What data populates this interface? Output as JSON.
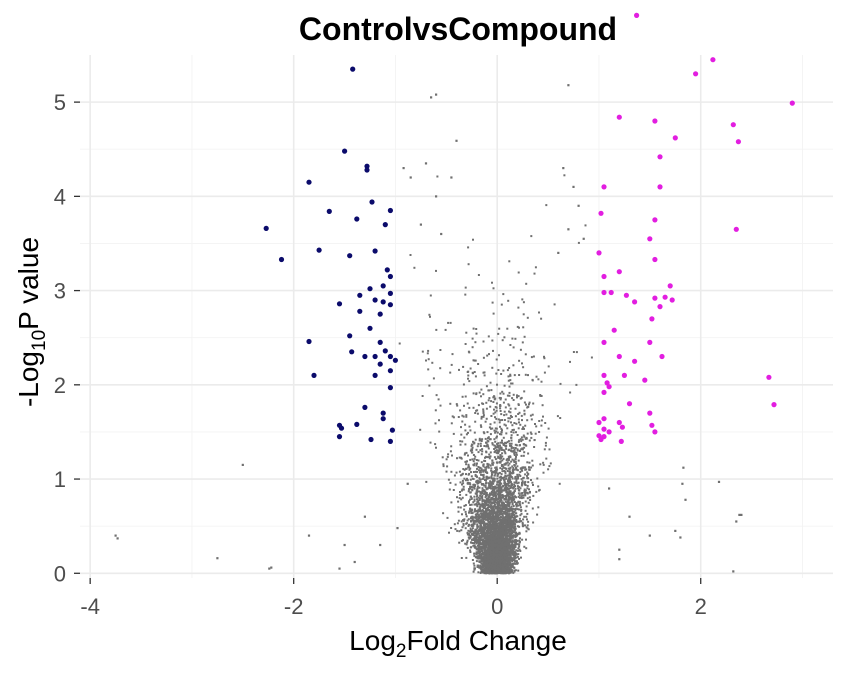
{
  "chart_data": {
    "type": "scatter",
    "title": "ControlvsCompound",
    "xlabel": {
      "pre": "Log",
      "sub": "2",
      "post": "Fold Change"
    },
    "ylabel": {
      "pre": "-Log",
      "sub": "10",
      "post": "P value"
    },
    "xlim": [
      -4.1,
      3.3
    ],
    "ylim": [
      -0.05,
      5.5
    ],
    "x_ticks": [
      -4,
      -2,
      0,
      2
    ],
    "y_ticks": [
      0,
      1,
      2,
      3,
      4,
      5
    ],
    "x_tick_labels": [
      "-4",
      "-2",
      "0",
      "2"
    ],
    "y_tick_labels": [
      "0",
      "1",
      "2",
      "3",
      "4",
      "5"
    ],
    "grid": true,
    "legend": "none",
    "thresholds": {
      "log2fc": 1,
      "pvalue_log10": 1.3
    },
    "colors": {
      "down": "#0b0b6b",
      "up": "#e21ee0",
      "ns": "#707070"
    },
    "series": [
      {
        "key": "down",
        "points": [
          [
            -1.42,
            5.35
          ],
          [
            -1.5,
            4.48
          ],
          [
            -1.85,
            4.15
          ],
          [
            -1.28,
            4.32
          ],
          [
            -1.28,
            4.28
          ],
          [
            -1.23,
            3.94
          ],
          [
            -1.65,
            3.84
          ],
          [
            -1.05,
            3.85
          ],
          [
            -1.38,
            3.76
          ],
          [
            -2.27,
            3.66
          ],
          [
            -1.1,
            3.7
          ],
          [
            -2.12,
            3.33
          ],
          [
            -1.75,
            3.43
          ],
          [
            -1.45,
            3.37
          ],
          [
            -1.2,
            3.42
          ],
          [
            -1.08,
            3.22
          ],
          [
            -1.05,
            3.15
          ],
          [
            -1.12,
            3.05
          ],
          [
            -1.25,
            3.02
          ],
          [
            -1.35,
            2.95
          ],
          [
            -1.2,
            2.9
          ],
          [
            -1.05,
            2.97
          ],
          [
            -1.12,
            2.88
          ],
          [
            -1.55,
            2.86
          ],
          [
            -1.05,
            2.85
          ],
          [
            -1.35,
            2.78
          ],
          [
            -1.15,
            2.75
          ],
          [
            -1.25,
            2.6
          ],
          [
            -1.45,
            2.52
          ],
          [
            -1.15,
            2.45
          ],
          [
            -1.85,
            2.46
          ],
          [
            -1.1,
            2.36
          ],
          [
            -1.43,
            2.35
          ],
          [
            -1.3,
            2.3
          ],
          [
            -1.2,
            2.3
          ],
          [
            -1.05,
            2.3
          ],
          [
            -1.0,
            2.26
          ],
          [
            -1.15,
            2.22
          ],
          [
            -1.05,
            2.15
          ],
          [
            -1.8,
            2.1
          ],
          [
            -1.2,
            2.1
          ],
          [
            -1.05,
            1.97
          ],
          [
            -1.3,
            1.76
          ],
          [
            -1.12,
            1.7
          ],
          [
            -1.12,
            1.64
          ],
          [
            -1.55,
            1.57
          ],
          [
            -1.53,
            1.54
          ],
          [
            -1.38,
            1.58
          ],
          [
            -1.03,
            1.52
          ],
          [
            -1.55,
            1.45
          ],
          [
            -1.24,
            1.42
          ],
          [
            -1.05,
            1.4
          ]
        ]
      },
      {
        "key": "up",
        "points": [
          [
            1.37,
            5.92
          ],
          [
            2.12,
            5.45
          ],
          [
            1.95,
            5.3
          ],
          [
            2.9,
            4.99
          ],
          [
            1.2,
            4.84
          ],
          [
            1.55,
            4.8
          ],
          [
            2.32,
            4.76
          ],
          [
            1.75,
            4.62
          ],
          [
            2.37,
            4.58
          ],
          [
            1.6,
            4.42
          ],
          [
            1.05,
            4.1
          ],
          [
            1.6,
            4.1
          ],
          [
            1.02,
            3.82
          ],
          [
            1.55,
            3.75
          ],
          [
            1.5,
            3.55
          ],
          [
            2.35,
            3.65
          ],
          [
            1.0,
            3.4
          ],
          [
            1.55,
            3.33
          ],
          [
            1.05,
            3.15
          ],
          [
            1.2,
            3.2
          ],
          [
            1.7,
            3.05
          ],
          [
            1.65,
            2.93
          ],
          [
            1.12,
            2.98
          ],
          [
            1.27,
            2.95
          ],
          [
            1.35,
            2.88
          ],
          [
            1.05,
            2.98
          ],
          [
            1.55,
            2.92
          ],
          [
            1.72,
            2.9
          ],
          [
            1.6,
            2.83
          ],
          [
            1.52,
            2.7
          ],
          [
            1.15,
            2.58
          ],
          [
            1.5,
            2.45
          ],
          [
            1.05,
            2.45
          ],
          [
            1.2,
            2.3
          ],
          [
            1.62,
            2.3
          ],
          [
            1.35,
            2.25
          ],
          [
            1.05,
            2.1
          ],
          [
            1.25,
            2.1
          ],
          [
            1.45,
            2.05
          ],
          [
            2.67,
            2.08
          ],
          [
            1.08,
            2.02
          ],
          [
            1.1,
            1.98
          ],
          [
            1.05,
            1.92
          ],
          [
            2.72,
            1.79
          ],
          [
            1.3,
            1.8
          ],
          [
            1.5,
            1.7
          ],
          [
            1.05,
            1.64
          ],
          [
            1.2,
            1.6
          ],
          [
            1.0,
            1.6
          ],
          [
            1.23,
            1.55
          ],
          [
            1.52,
            1.57
          ],
          [
            1.05,
            1.53
          ],
          [
            1.1,
            1.5
          ],
          [
            1.55,
            1.5
          ],
          [
            1.0,
            1.46
          ],
          [
            1.05,
            1.45
          ],
          [
            1.02,
            1.42
          ],
          [
            1.22,
            1.4
          ]
        ]
      },
      {
        "key": "ns",
        "points": [
          [
            -0.65,
            5.05
          ],
          [
            -0.6,
            5.08
          ],
          [
            0.7,
            5.18
          ],
          [
            -0.4,
            4.59
          ],
          [
            -0.7,
            4.35
          ],
          [
            -0.92,
            4.3
          ],
          [
            -0.85,
            4.2
          ],
          [
            -0.45,
            4.2
          ],
          [
            0.65,
            4.3
          ],
          [
            0.75,
            4.1
          ],
          [
            -0.6,
            4.0
          ],
          [
            0.8,
            3.9
          ],
          [
            -0.75,
            3.7
          ],
          [
            -0.55,
            3.6
          ],
          [
            0.7,
            3.65
          ],
          [
            0.85,
            3.55
          ],
          [
            0.6,
            3.4
          ],
          [
            -2.5,
            1.15
          ],
          [
            -3.75,
            0.4
          ],
          [
            -3.73,
            0.37
          ],
          [
            -2.75,
            0.16
          ],
          [
            -2.22,
            0.06
          ],
          [
            -2.24,
            0.05
          ],
          [
            -1.85,
            0.4
          ],
          [
            -1.55,
            0.05
          ],
          [
            -1.4,
            0.12
          ],
          [
            -1.15,
            0.3
          ],
          [
            1.2,
            0.25
          ],
          [
            1.2,
            0.15
          ],
          [
            1.5,
            0.4
          ],
          [
            1.75,
            0.45
          ],
          [
            1.8,
            0.38
          ],
          [
            2.38,
            0.62
          ],
          [
            2.35,
            0.55
          ],
          [
            2.4,
            0.62
          ],
          [
            2.18,
            0.97
          ],
          [
            1.85,
            0.78
          ],
          [
            1.82,
            0.95
          ],
          [
            1.83,
            1.12
          ],
          [
            2.32,
            0.02
          ],
          [
            1.3,
            0.6
          ],
          [
            1.1,
            0.9
          ],
          [
            -0.88,
            0.95
          ],
          [
            -0.98,
            0.48
          ],
          [
            -1.3,
            0.6
          ],
          [
            -1.5,
            0.3
          ]
        ]
      }
    ]
  }
}
